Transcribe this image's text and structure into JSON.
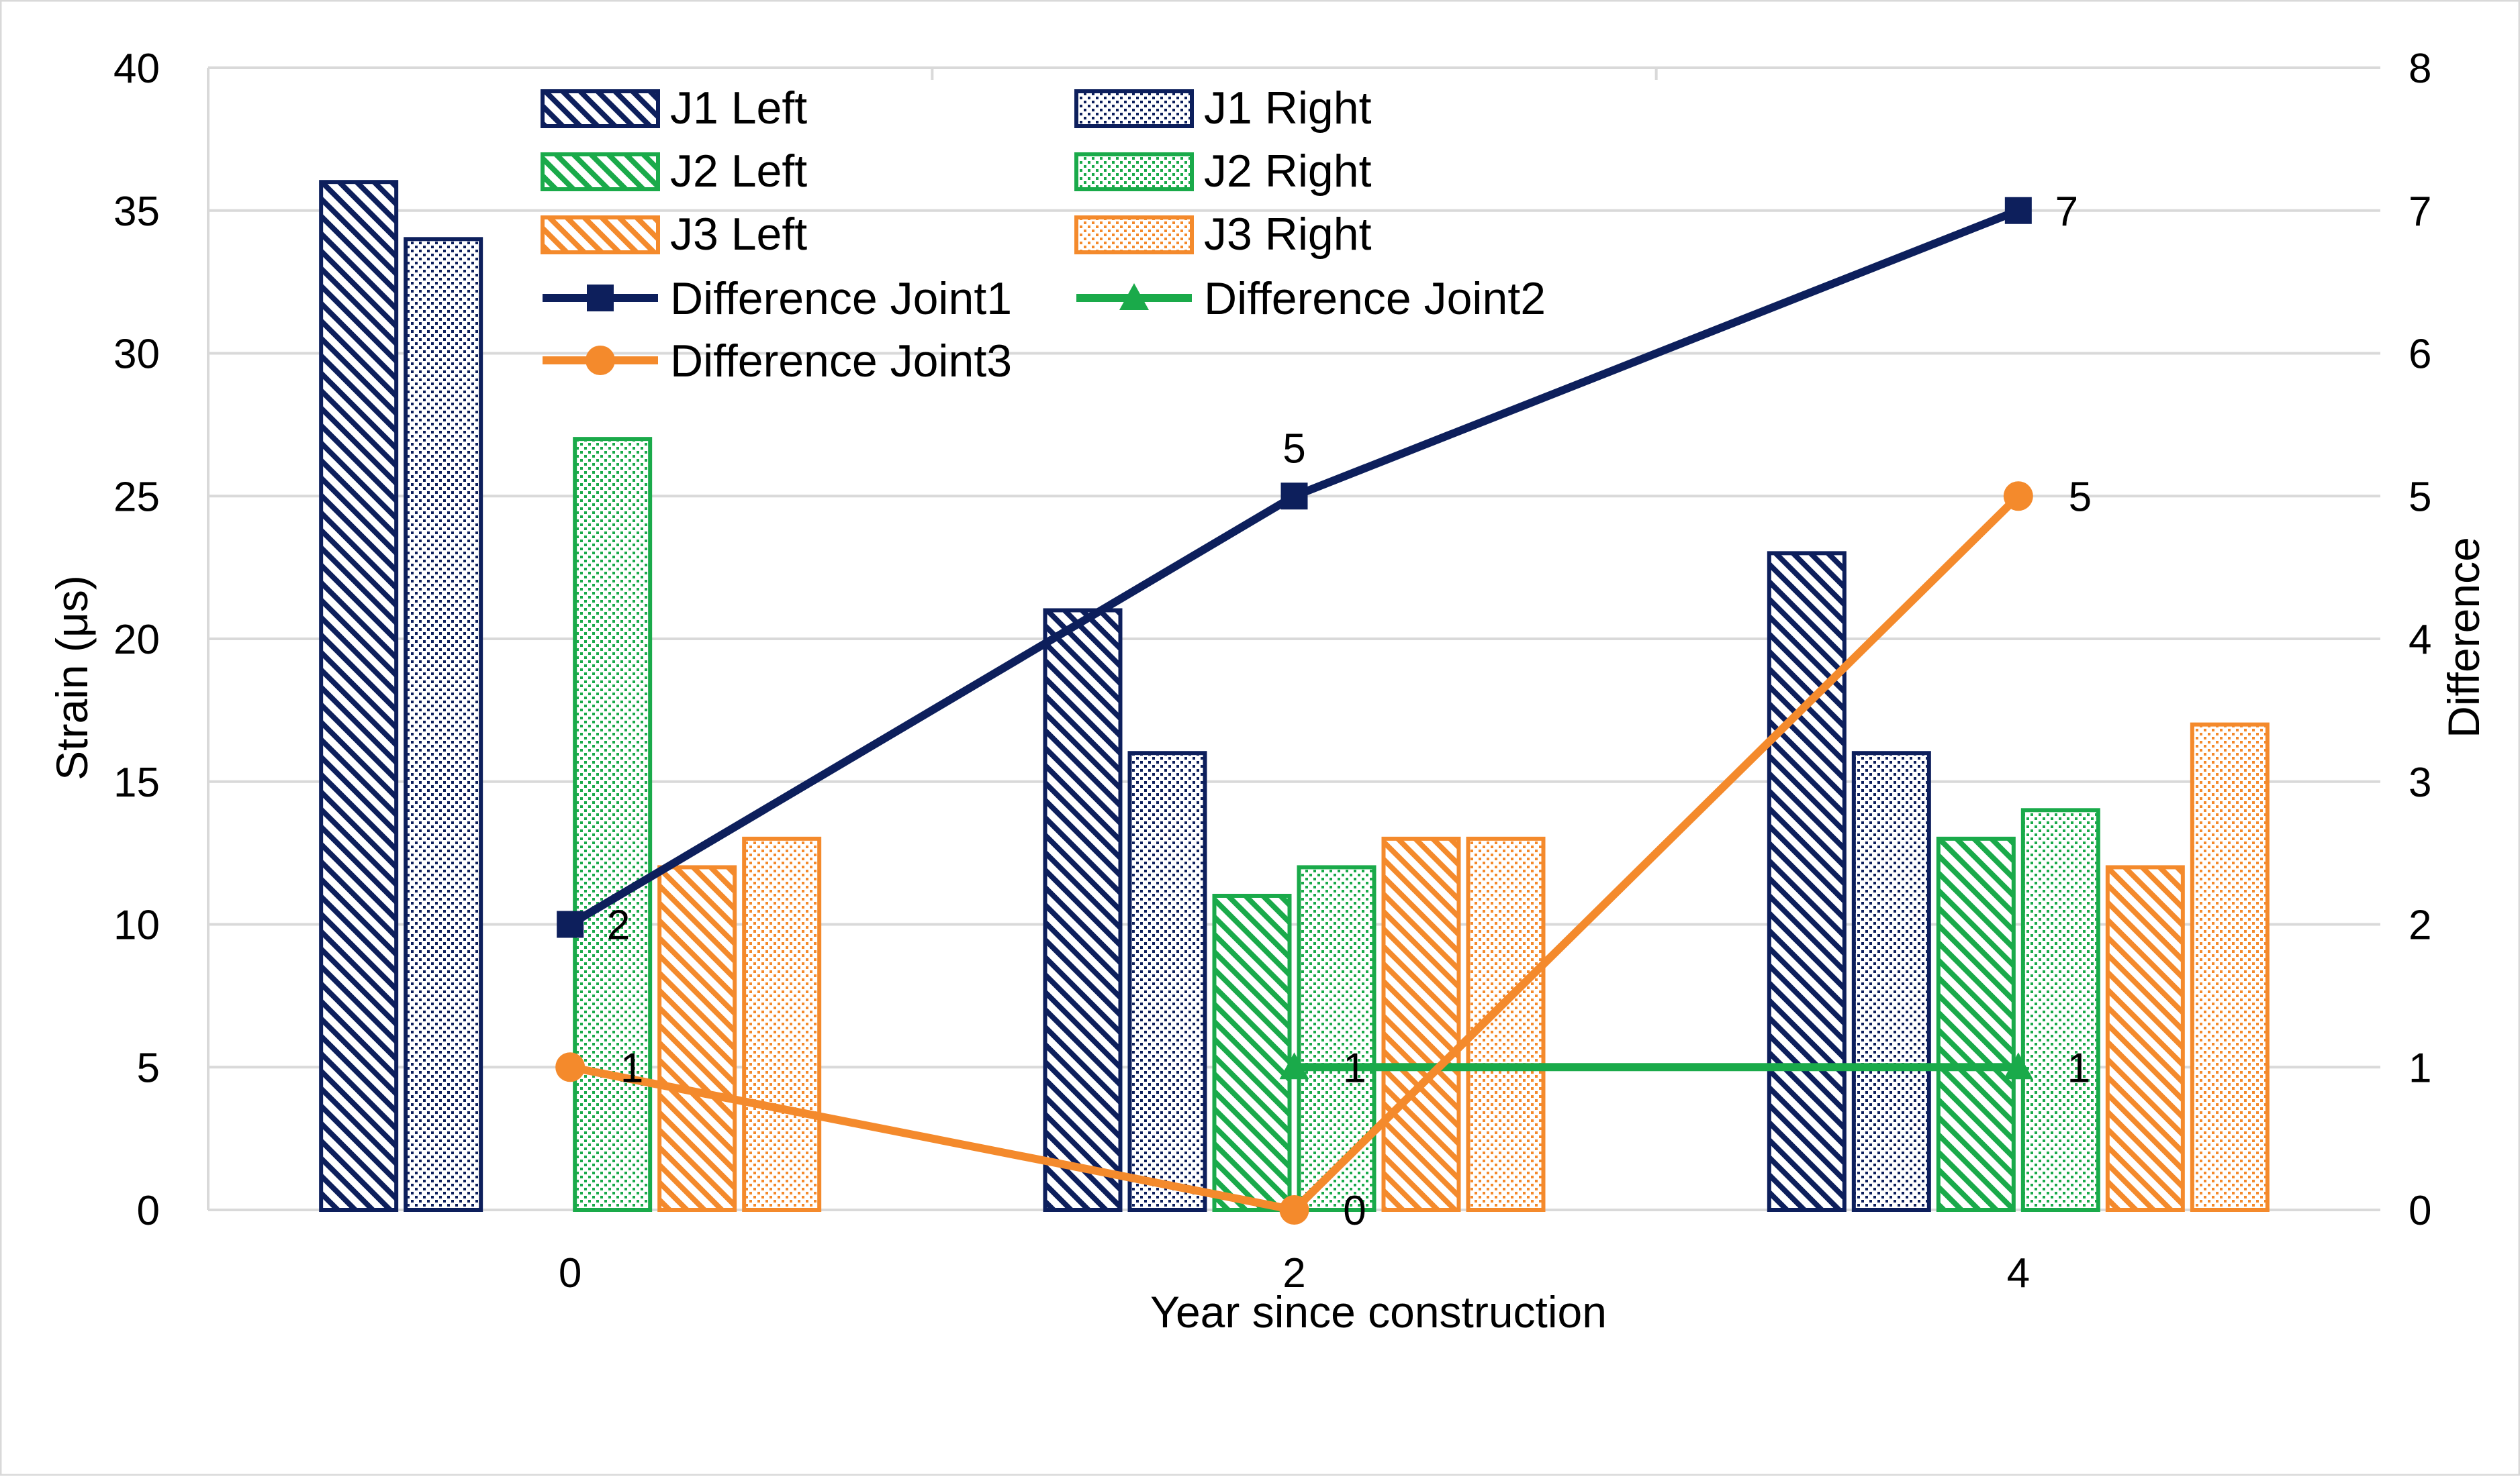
{
  "chart_data": {
    "type": "bar",
    "title": "",
    "xlabel": "Year since construction",
    "ylabel": "Strain (μs)",
    "y2label": "Difference",
    "categories": [
      "0",
      "2",
      "4"
    ],
    "ylim": [
      0,
      40
    ],
    "yticks": [
      "0",
      "5",
      "10",
      "15",
      "20",
      "25",
      "30",
      "35",
      "40"
    ],
    "y2lim": [
      0,
      8
    ],
    "y2ticks": [
      "0",
      "1",
      "2",
      "3",
      "4",
      "5",
      "6",
      "7",
      "8"
    ],
    "grid": true,
    "legend_position": "top-left",
    "bar_series": [
      {
        "name": "J1 Left",
        "values": [
          36,
          21,
          23
        ],
        "color": "#0d1f5c",
        "pattern": "diagonal"
      },
      {
        "name": "J1 Right",
        "values": [
          34,
          16,
          16
        ],
        "color": "#0d1f5c",
        "pattern": "dots"
      },
      {
        "name": "J2 Left",
        "values": [
          0,
          11,
          13
        ],
        "color": "#1aaa4a",
        "pattern": "diagonal"
      },
      {
        "name": "J2 Right",
        "values": [
          27,
          12,
          14
        ],
        "color": "#1aaa4a",
        "pattern": "dots"
      },
      {
        "name": "J3 Left",
        "values": [
          12,
          13,
          12
        ],
        "color": "#f48a2c",
        "pattern": "diagonal"
      },
      {
        "name": "J3 Right",
        "values": [
          13,
          13,
          17
        ],
        "color": "#f48a2c",
        "pattern": "dots"
      }
    ],
    "line_series": [
      {
        "name": "Difference Joint1",
        "axis": "right",
        "values": [
          2,
          5,
          7
        ],
        "labels": [
          "2",
          "5",
          "7"
        ],
        "color": "#0d1f5c",
        "marker": "square"
      },
      {
        "name": "Difference Joint2",
        "axis": "right",
        "values": [
          null,
          1,
          1
        ],
        "labels": [
          "",
          "1",
          "1"
        ],
        "color": "#1aaa4a",
        "marker": "triangle"
      },
      {
        "name": "Difference Joint3",
        "axis": "right",
        "values": [
          1,
          0,
          5
        ],
        "labels": [
          "1",
          "0",
          "5"
        ],
        "color": "#f48a2c",
        "marker": "circle"
      }
    ]
  }
}
